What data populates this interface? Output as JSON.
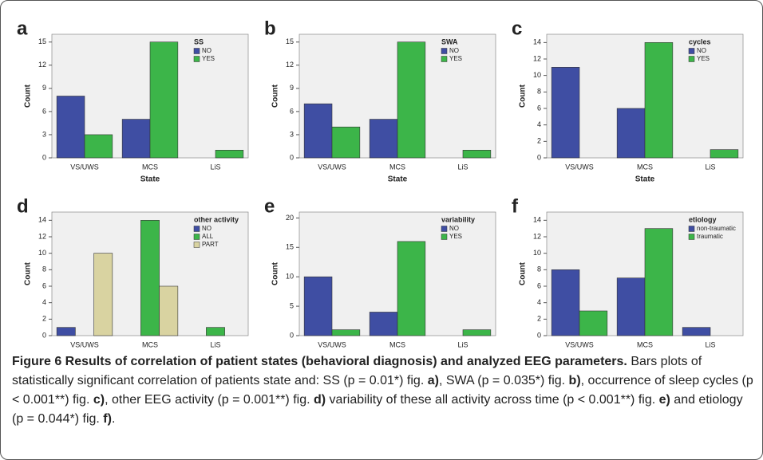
{
  "chart_data": [
    {
      "type": "bar",
      "panel": "a",
      "legend_title": "SS",
      "x_label": "State",
      "y_label": "Count",
      "categories": [
        "VS/UWS",
        "MCS",
        "LiS"
      ],
      "series": [
        {
          "name": "NO",
          "color": "#3f4ea3",
          "values": [
            8,
            5,
            0
          ]
        },
        {
          "name": "YES",
          "color": "#3cb549",
          "values": [
            3,
            15,
            1
          ]
        }
      ],
      "ylim": [
        0,
        16
      ],
      "yticks": [
        0,
        3,
        6,
        9,
        12,
        15
      ]
    },
    {
      "type": "bar",
      "panel": "b",
      "legend_title": "SWA",
      "x_label": "State",
      "y_label": "Count",
      "categories": [
        "VS/UWS",
        "MCS",
        "LiS"
      ],
      "series": [
        {
          "name": "NO",
          "color": "#3f4ea3",
          "values": [
            7,
            5,
            0
          ]
        },
        {
          "name": "YES",
          "color": "#3cb549",
          "values": [
            4,
            15,
            1
          ]
        }
      ],
      "ylim": [
        0,
        16
      ],
      "yticks": [
        0,
        3,
        6,
        9,
        12,
        15
      ]
    },
    {
      "type": "bar",
      "panel": "c",
      "legend_title": "cycles",
      "x_label": "State",
      "y_label": "Count",
      "categories": [
        "VS/UWS",
        "MCS",
        "LiS"
      ],
      "series": [
        {
          "name": "NO",
          "color": "#3f4ea3",
          "values": [
            11,
            6,
            0
          ]
        },
        {
          "name": "YES",
          "color": "#3cb549",
          "values": [
            0,
            14,
            1
          ]
        }
      ],
      "ylim": [
        0,
        15
      ],
      "yticks": [
        0,
        2,
        4,
        6,
        8,
        10,
        12,
        14
      ]
    },
    {
      "type": "bar",
      "panel": "d",
      "legend_title": "other activity",
      "x_label": "State",
      "y_label": "Count",
      "categories": [
        "VS/UWS",
        "MCS",
        "LiS"
      ],
      "series": [
        {
          "name": "NO",
          "color": "#3f4ea3",
          "values": [
            1,
            0,
            0
          ]
        },
        {
          "name": "ALL",
          "color": "#3cb549",
          "values": [
            0,
            14,
            1
          ]
        },
        {
          "name": "PART",
          "color": "#d9d3a1",
          "values": [
            10,
            6,
            0
          ]
        }
      ],
      "ylim": [
        0,
        15
      ],
      "yticks": [
        0,
        2,
        4,
        6,
        8,
        10,
        12,
        14
      ]
    },
    {
      "type": "bar",
      "panel": "e",
      "legend_title": "variability",
      "x_label": "State",
      "y_label": "Count",
      "categories": [
        "VS/UWS",
        "MCS",
        "LiS"
      ],
      "series": [
        {
          "name": "NO",
          "color": "#3f4ea3",
          "values": [
            10,
            4,
            0
          ]
        },
        {
          "name": "YES",
          "color": "#3cb549",
          "values": [
            1,
            16,
            1
          ]
        }
      ],
      "ylim": [
        0,
        21
      ],
      "yticks": [
        0,
        5,
        10,
        15,
        20
      ]
    },
    {
      "type": "bar",
      "panel": "f",
      "legend_title": "etiology",
      "x_label": "State",
      "y_label": "Count",
      "categories": [
        "VS/UWS",
        "MCS",
        "LiS"
      ],
      "series": [
        {
          "name": "non-traumatic",
          "color": "#3f4ea3",
          "values": [
            8,
            7,
            1
          ]
        },
        {
          "name": "traumatic",
          "color": "#3cb549",
          "values": [
            3,
            13,
            0
          ]
        }
      ],
      "ylim": [
        0,
        15
      ],
      "yticks": [
        0,
        2,
        4,
        6,
        8,
        10,
        12,
        14
      ]
    }
  ],
  "caption": {
    "parts": [
      "Figure 6 Results of correlation of patient states (behavioral diagnosis) and analyzed EEG parameters.",
      " Bars plots of statistically significant correlation of patients state and: SS (p = 0.01*) fig. ",
      "a)",
      ", SWA (p = 0.035*) fig. ",
      "b)",
      ", occurrence of sleep cycles (p < 0.001**) fig. ",
      "c)",
      ", other EEG activity (p = 0.001**) fig. ",
      "d)",
      " variability of these all activity across time (p < 0.001**) fig. ",
      "e)",
      " and etiology (p = 0.044*) fig. ",
      "f)",
      "."
    ]
  }
}
